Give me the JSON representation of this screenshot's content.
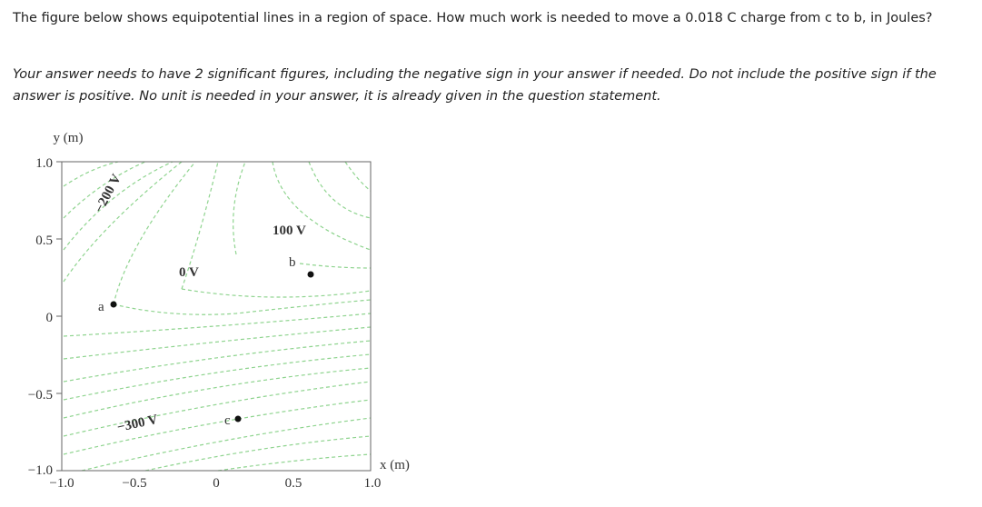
{
  "question": {
    "text": "The figure below shows equipotential lines in a region of space. How much work is needed to move a 0.018 C charge from c to b, in Joules?",
    "instructions": "Your answer needs to have 2 significant figures, including the negative sign in your answer if needed. Do not include the positive sign if the answer is positive. No unit is needed in your answer, it is already given in the question statement."
  },
  "figure": {
    "y_axis_label": "y (m)",
    "x_axis_label": "x (m)",
    "y_ticks": [
      "1.0",
      "0.5",
      "0",
      "−0.5",
      "−1.0"
    ],
    "x_ticks": [
      "−1.0",
      "−0.5",
      "0",
      "0.5",
      "1.0"
    ],
    "potential_labels": [
      "−200 V",
      "100 V",
      "0 V",
      "−300 V"
    ],
    "points": [
      "a",
      "b",
      "c"
    ]
  }
}
